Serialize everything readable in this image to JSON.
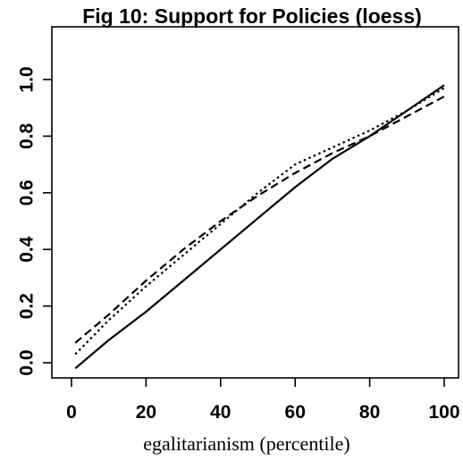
{
  "chart_data": {
    "type": "line",
    "title": "Fig 10: Support for Policies (loess)",
    "subtitle": "",
    "xlabel": "egalitarianism (percentile)",
    "ylabel": "",
    "xlim": [
      0,
      100
    ],
    "ylim": [
      0,
      1
    ],
    "x_ticks": [
      "0",
      "20",
      "40",
      "60",
      "80",
      "100"
    ],
    "y_ticks": [
      "0.0",
      "0.2",
      "0.4",
      "0.6",
      "0.8",
      "1.0"
    ],
    "grid": false,
    "legend": "none",
    "series": [
      {
        "style": "solid",
        "color": "#000000",
        "x": [
          1,
          10,
          20,
          30,
          40,
          50,
          60,
          70,
          80,
          90,
          100
        ],
        "y": [
          -0.02,
          0.08,
          0.18,
          0.29,
          0.4,
          0.51,
          0.62,
          0.72,
          0.8,
          0.89,
          0.98
        ]
      },
      {
        "style": "dashed",
        "color": "#000000",
        "x": [
          1,
          10,
          20,
          30,
          40,
          50,
          60,
          70,
          80,
          90,
          100
        ],
        "y": [
          0.07,
          0.17,
          0.29,
          0.4,
          0.5,
          0.59,
          0.67,
          0.74,
          0.8,
          0.87,
          0.94
        ]
      },
      {
        "style": "dotted",
        "color": "#000000",
        "x": [
          1,
          10,
          20,
          30,
          40,
          50,
          60,
          70,
          80,
          90,
          100
        ],
        "y": [
          0.03,
          0.15,
          0.27,
          0.38,
          0.49,
          0.6,
          0.7,
          0.76,
          0.82,
          0.89,
          0.97
        ]
      }
    ]
  }
}
